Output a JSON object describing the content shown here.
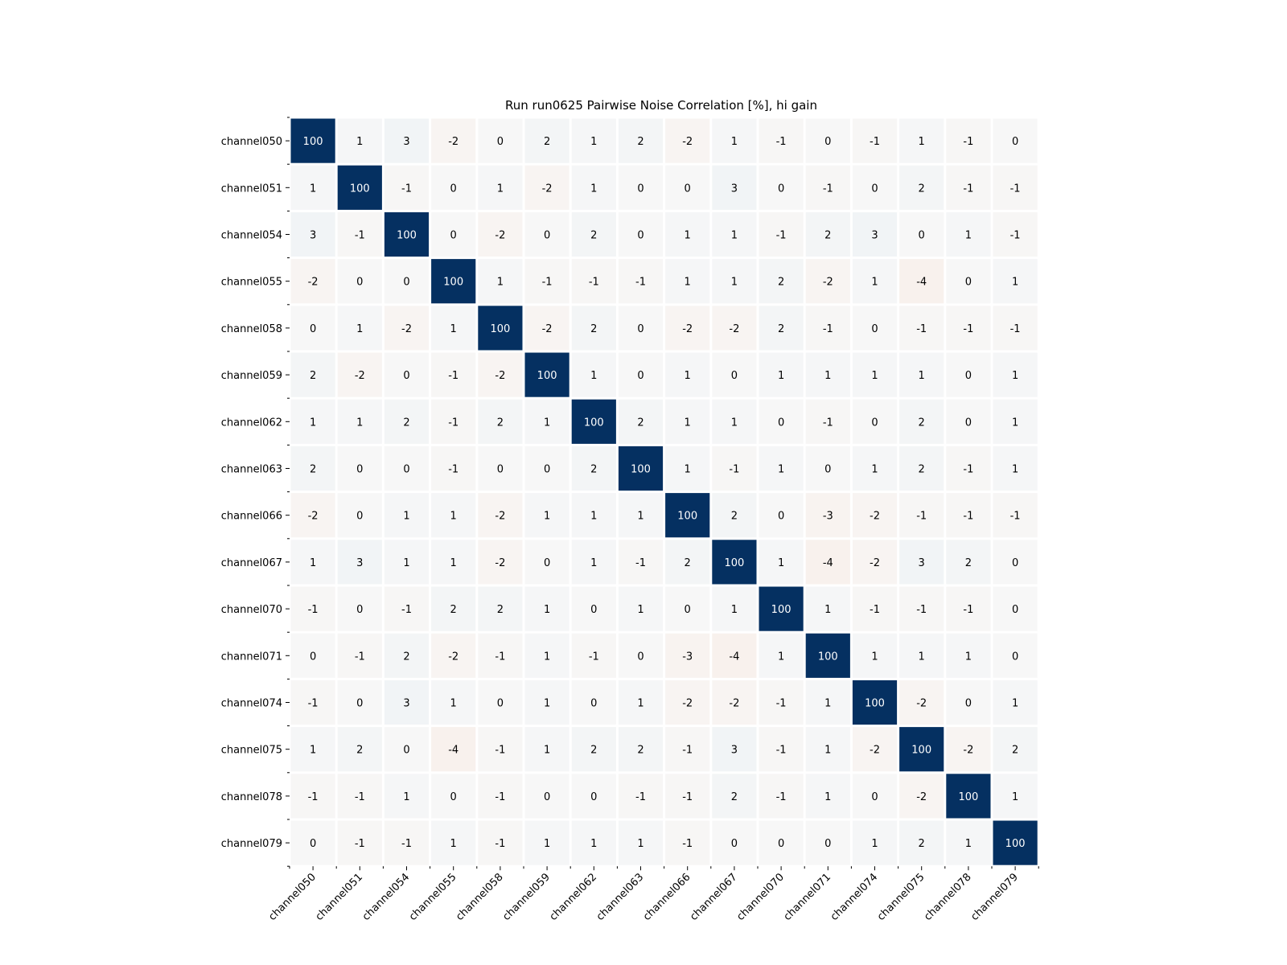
{
  "chart_data": {
    "type": "heatmap",
    "title": "Run run0625 Pairwise Noise Correlation [%], hi gain",
    "xlabel": "",
    "ylabel": "",
    "colormap": "RdBu_r",
    "value_range": [
      -100,
      100
    ],
    "colors": {
      "negative": "#67001f",
      "zero": "#f7f7f7",
      "positive": "#053061",
      "cell_border": "#ffffff"
    },
    "grid": false,
    "legend": "none",
    "labels": [
      "channel050",
      "channel051",
      "channel054",
      "channel055",
      "channel058",
      "channel059",
      "channel062",
      "channel063",
      "channel066",
      "channel067",
      "channel070",
      "channel071",
      "channel074",
      "channel075",
      "channel078",
      "channel079"
    ],
    "matrix": [
      [
        100,
        1,
        3,
        -2,
        0,
        2,
        1,
        2,
        -2,
        1,
        -1,
        0,
        -1,
        1,
        -1,
        0
      ],
      [
        1,
        100,
        -1,
        0,
        1,
        -2,
        1,
        0,
        0,
        3,
        0,
        -1,
        0,
        2,
        -1,
        -1
      ],
      [
        3,
        -1,
        100,
        0,
        -2,
        0,
        2,
        0,
        1,
        1,
        -1,
        2,
        3,
        0,
        1,
        -1
      ],
      [
        -2,
        0,
        0,
        100,
        1,
        -1,
        -1,
        -1,
        1,
        1,
        2,
        -2,
        1,
        -4,
        0,
        1
      ],
      [
        0,
        1,
        -2,
        1,
        100,
        -2,
        2,
        0,
        -2,
        -2,
        2,
        -1,
        0,
        -1,
        -1,
        -1
      ],
      [
        2,
        -2,
        0,
        -1,
        -2,
        100,
        1,
        0,
        1,
        0,
        1,
        1,
        1,
        1,
        0,
        1
      ],
      [
        1,
        1,
        2,
        -1,
        2,
        1,
        100,
        2,
        1,
        1,
        0,
        -1,
        0,
        2,
        0,
        1
      ],
      [
        2,
        0,
        0,
        -1,
        0,
        0,
        2,
        100,
        1,
        -1,
        1,
        0,
        1,
        2,
        -1,
        1
      ],
      [
        -2,
        0,
        1,
        1,
        -2,
        1,
        1,
        1,
        100,
        2,
        0,
        -3,
        -2,
        -1,
        -1,
        -1
      ],
      [
        1,
        3,
        1,
        1,
        -2,
        0,
        1,
        -1,
        2,
        100,
        1,
        -4,
        -2,
        3,
        2,
        0
      ],
      [
        -1,
        0,
        -1,
        2,
        2,
        1,
        0,
        1,
        0,
        1,
        100,
        1,
        -1,
        -1,
        -1,
        0
      ],
      [
        0,
        -1,
        2,
        -2,
        -1,
        1,
        -1,
        0,
        -3,
        -4,
        1,
        100,
        1,
        1,
        1,
        0
      ],
      [
        -1,
        0,
        3,
        1,
        0,
        1,
        0,
        1,
        -2,
        -2,
        -1,
        1,
        100,
        -2,
        0,
        1
      ],
      [
        1,
        2,
        0,
        -4,
        -1,
        1,
        2,
        2,
        -1,
        3,
        -1,
        1,
        -2,
        100,
        -2,
        2
      ],
      [
        -1,
        -1,
        1,
        0,
        -1,
        0,
        0,
        -1,
        -1,
        2,
        -1,
        1,
        0,
        -2,
        100,
        1
      ],
      [
        0,
        -1,
        -1,
        1,
        -1,
        1,
        1,
        1,
        -1,
        0,
        0,
        0,
        1,
        2,
        1,
        100
      ]
    ]
  }
}
